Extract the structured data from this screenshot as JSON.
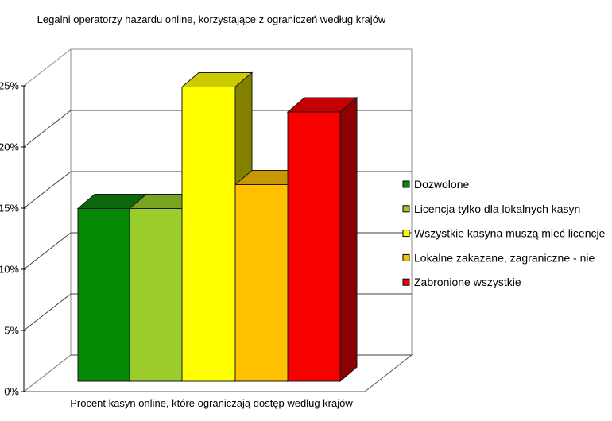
{
  "chart_data": {
    "type": "bar",
    "projection": "3d",
    "title": "Legalni operatorzy hazardu online, korzystające z ograniczeń według krajów",
    "xlabel": "Procent kasyn online, które ograniczają dostęp według krajów",
    "ylabel": "",
    "unit": "%",
    "categories": [
      "Dozwolone",
      "Licencja tylko dla lokalnych kasyn",
      "Wszystkie kasyna muszą mieć licencje",
      "Lokalne zakazane, zagraniczne - nie",
      "Zabronione wszystkie"
    ],
    "values": [
      14.5,
      14.5,
      24.7,
      16.5,
      22.6
    ],
    "ylim": [
      0,
      25
    ],
    "ytick_step": 5,
    "yticks": [
      "0%",
      "5%",
      "10%",
      "15%",
      "20%",
      "25%"
    ],
    "grid": true,
    "legend_position": "right",
    "colors": [
      {
        "name": "dark-green",
        "front": "#048a04",
        "top": "#0d680d",
        "side": "#0a4d0a"
      },
      {
        "name": "yellow-green",
        "front": "#9acc2e",
        "top": "#7ba322",
        "side": "#5c7a19"
      },
      {
        "name": "yellow",
        "front": "#ffff00",
        "top": "#cbcb00",
        "side": "#828200"
      },
      {
        "name": "orange",
        "front": "#ffc000",
        "top": "#c99700",
        "side": "#916d00"
      },
      {
        "name": "red",
        "front": "#f90000",
        "top": "#c40000",
        "side": "#8b0000"
      }
    ],
    "line_colors": {
      "axis": "#000000",
      "grid": "#404040",
      "wall_edge": "#8c8c8c",
      "floor_edge": "#555555",
      "bar_outline": "#1a1a1a"
    }
  }
}
